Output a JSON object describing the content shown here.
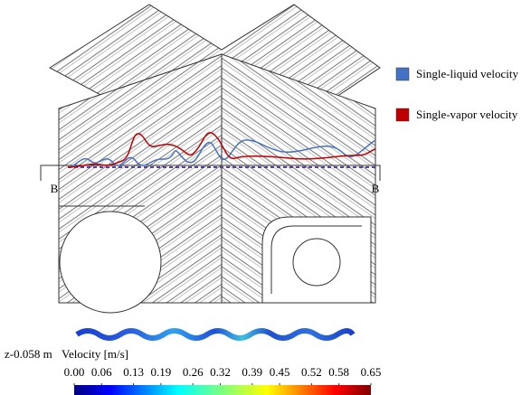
{
  "legend": [
    {
      "name": "Single-liquid velocity",
      "color": "#4472c4"
    },
    {
      "name": "Single-vapor velocity",
      "color": "#c00000"
    }
  ],
  "section_labels": [
    "B",
    "B"
  ],
  "position_label": "z-0.058 m",
  "colorbar": {
    "title": "Velocity [m/s]",
    "range": [
      0,
      0.65
    ],
    "ticks": [
      {
        "value": 0,
        "label": "0.00"
      },
      {
        "value": 0.06,
        "label": "0.06"
      },
      {
        "value": 0.13,
        "label": "0.13"
      },
      {
        "value": 0.19,
        "label": "0.19"
      },
      {
        "value": 0.26,
        "label": "0.26"
      },
      {
        "value": 0.32,
        "label": "0.32"
      },
      {
        "value": 0.39,
        "label": "0.39"
      },
      {
        "value": 0.45,
        "label": "0.45"
      },
      {
        "value": 0.52,
        "label": "0.52"
      },
      {
        "value": 0.58,
        "label": "0.58"
      },
      {
        "value": 0.65,
        "label": "0.65"
      }
    ]
  }
}
